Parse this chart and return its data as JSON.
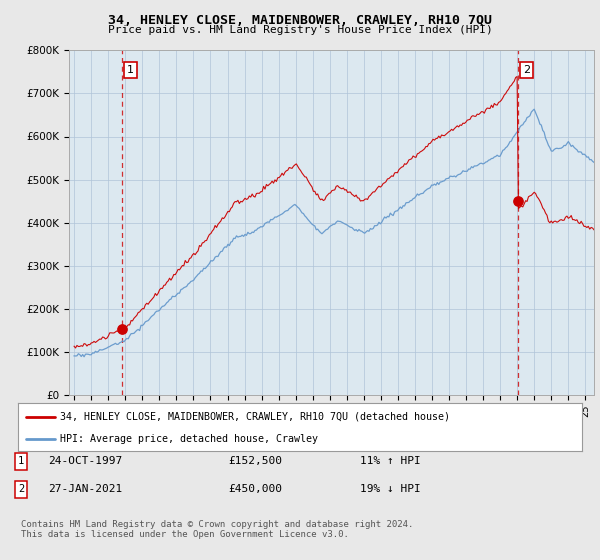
{
  "title": "34, HENLEY CLOSE, MAIDENBOWER, CRAWLEY, RH10 7QU",
  "subtitle": "Price paid vs. HM Land Registry's House Price Index (HPI)",
  "ylabel_ticks": [
    "£0",
    "£100K",
    "£200K",
    "£300K",
    "£400K",
    "£500K",
    "£600K",
    "£700K",
    "£800K"
  ],
  "ytick_values": [
    0,
    100000,
    200000,
    300000,
    400000,
    500000,
    600000,
    700000,
    800000
  ],
  "ylim": [
    0,
    800000
  ],
  "sale1_date": "24-OCT-1997",
  "sale1_price": 152500,
  "sale1_hpi_pct": "11% ↑ HPI",
  "sale2_date": "27-JAN-2021",
  "sale2_price": 450000,
  "sale2_hpi_pct": "19% ↓ HPI",
  "legend_line1": "34, HENLEY CLOSE, MAIDENBOWER, CRAWLEY, RH10 7QU (detached house)",
  "legend_line2": "HPI: Average price, detached house, Crawley",
  "footer": "Contains HM Land Registry data © Crown copyright and database right 2024.\nThis data is licensed under the Open Government Licence v3.0.",
  "price_line_color": "#cc0000",
  "hpi_line_color": "#6699cc",
  "sale_dot_color": "#cc0000",
  "vline_color": "#cc0000",
  "background_color": "#e8e8e8",
  "plot_background": "#dce8f0",
  "grid_color": "#b0c4d8"
}
